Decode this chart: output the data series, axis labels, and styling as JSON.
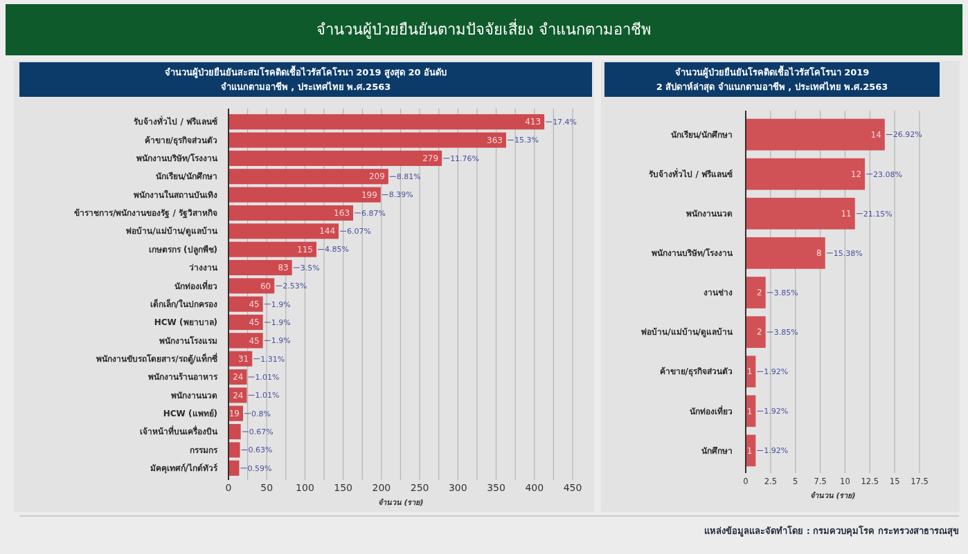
{
  "chart_data": [
    {
      "type": "bar",
      "orientation": "horizontal",
      "title": "จำนวนผู้ป่วยยืนยันสะสมโรคติดเชื้อไวรัสโคโรนา 2019 สูงสุด 20 อันดับ",
      "subtitle": "จำแนกตามอาชีพ , ประเทศไทย พ.ศ.2563",
      "xlabel": "จำนวน (ราย)",
      "categories": [
        "รับจ้างทั่วไป / ฟรีแลนซ์",
        "ค้าขาย/ธุรกิจส่วนตัว",
        "พนักงานบริษัท/โรงงาน",
        "นักเรียน/นักศึกษา",
        "พนักงานในสถานบันเทิง",
        "ข้าราชการ/พนักงานของรัฐ / รัฐวิสาหกิจ",
        "พ่อบ้าน/แม่บ้าน/ดูแลบ้าน",
        "เกษตรกร (ปลูกพืช)",
        "ว่างงาน",
        "นักท่องเที่ยว",
        "เด็กเล็ก/ในปกครอง",
        "HCW (พยาบาล)",
        "พนักงานโรงแรม",
        "พนักงานขับรถโดยสาร/รถตู้/แท็กซี่",
        "พนักงานร้านอาหาร",
        "พนักงานนวด",
        "HCW (แพทย์)",
        "เจ้าหน้าที่บนเครื่องบิน",
        "กรรมกร",
        "มัคคุเทศก์/ไกด์ทัวร์"
      ],
      "values": [
        413,
        363,
        279,
        209,
        199,
        163,
        144,
        115,
        83,
        60,
        45,
        45,
        45,
        31,
        24,
        24,
        19,
        16,
        15,
        14
      ],
      "value_labels": [
        "413",
        "363",
        "279",
        "209",
        "199",
        "163",
        "144",
        "115",
        "83",
        "60",
        "45",
        "45",
        "45",
        "31",
        "24",
        "24",
        "19",
        null,
        null,
        null
      ],
      "color": "#cd4a4f",
      "xlim": [
        0,
        450
      ],
      "xticks": [
        0,
        {
          "value": 25,
          "label": null
        },
        50,
        {
          "value": 75,
          "label": null
        },
        100,
        {
          "value": 125,
          "label": null
        },
        150,
        {
          "value": 175,
          "label": null
        },
        200,
        {
          "value": 225,
          "label": null
        },
        250,
        {
          "value": 275,
          "label": null
        },
        300,
        {
          "value": 325,
          "label": null
        },
        350,
        {
          "value": 375,
          "label": null
        },
        400,
        {
          "value": 425,
          "label": null
        },
        450
      ],
      "grid": "x",
      "annotations": [
        "จำนวนผู้ป่วยยืนยันตามปัจจัยเสี่ยง จำแนกตามอาชีพ",
        {
          "text": "17.4%",
          "x": 413,
          "y": "รับจ้างทั่วไป / ฟรีแลนซ์"
        },
        {
          "text": "15.3%",
          "x": 363,
          "y": "ค้าขาย/ธุรกิจส่วนตัว"
        },
        {
          "text": "11.76%",
          "x": 279,
          "y": "พนักงานบริษัท/โรงงาน"
        },
        {
          "text": "8.81%",
          "x": 209,
          "y": "นักเรียน/นักศึกษา"
        },
        {
          "text": "8.39%",
          "x": 199,
          "y": "พนักงานในสถานบันเทิง"
        },
        {
          "text": "6.87%",
          "x": 163,
          "y": "ข้าราชการ/พนักงานของรัฐ / รัฐวิสาหกิจ"
        },
        {
          "text": "6.07%",
          "x": 144,
          "y": "พ่อบ้าน/แม่บ้าน/ดูแลบ้าน"
        },
        {
          "text": "4.85%",
          "x": 115,
          "y": "เกษตรกร (ปลูกพืช)"
        },
        {
          "text": "3.5%",
          "x": 83,
          "y": "ว่างงาน"
        },
        {
          "text": "2.53%",
          "x": 60,
          "y": "นักท่องเที่ยว"
        },
        {
          "text": "1.9%",
          "x": 45,
          "y": "เด็กเล็ก/ในปกครอง"
        },
        {
          "text": "1.9%",
          "x": 45,
          "y": "HCW (พยาบาล)"
        },
        {
          "text": "1.9%",
          "x": 45,
          "y": "พนักงานโรงแรม"
        },
        {
          "text": "1.31%",
          "x": 31,
          "y": "พนักงานขับรถโดยสาร/รถตู้/แท็กซี่"
        },
        {
          "text": "1.01%",
          "x": 24,
          "y": "พนักงานร้านอาหาร"
        },
        {
          "text": "1.01%",
          "x": 24,
          "y": "พนักงานนวด"
        },
        {
          "text": "0.8%",
          "x": 19,
          "y": "HCW (แพทย์)"
        },
        {
          "text": "0.67%",
          "x": 16,
          "y": "เจ้าหน้าที่บนเครื่องบิน"
        },
        {
          "text": "0.63%",
          "x": 15,
          "y": "กรรมกร"
        },
        {
          "text": "0.59%",
          "x": 14,
          "y": "มัคคุเทศก์/ไกด์ทัวร์"
        }
      ]
    },
    {
      "type": "bar",
      "orientation": "horizontal",
      "title": "จำนวนผู้ป่วยยืนยันโรคติดเชื้อไวรัสโคโรนา 2019",
      "subtitle": "2 สัปดาห์ล่าสุด จำแนกตามอาชีพ , ประเทศไทย พ.ศ.2563",
      "xlabel": "จำนวน (ราย)",
      "categories": [
        "นักเรียน/นักศึกษา",
        "รับจ้างทั่วไป / ฟรีแลนซ์",
        "พนักงานนวด",
        "พนักงานบริษัท/โรงงาน",
        "งานช่าง",
        "พ่อบ้าน/แม่บ้าน/ดูแลบ้าน",
        "ค้าขาย/ธุรกิจส่วนตัว",
        "นักท่องเที่ยว",
        "นักศึกษา"
      ],
      "values": [
        14,
        12,
        11,
        8,
        2,
        2,
        1,
        1,
        1
      ],
      "value_labels": [
        "14",
        "12",
        "11",
        "8",
        "2",
        "2",
        "1",
        "1",
        "1"
      ],
      "color": "#d05256",
      "xlim": [
        0,
        17.5
      ],
      "xticks": [
        0,
        2.5,
        5,
        7.5,
        10,
        12.5,
        15,
        17.5
      ],
      "grid": "x",
      "annotations": [
        {
          "text": "26.92%",
          "x": 14,
          "y": "นักเรียน/นักศึกษา"
        },
        {
          "text": "23.08%",
          "x": 12,
          "y": "รับจ้างทั่วไป / ฟรีแลนซ์"
        },
        {
          "text": "21.15%",
          "x": 11,
          "y": "พนักงานนวด"
        },
        {
          "text": "15.38%",
          "x": 8,
          "y": "พนักงานบริษัท/โรงงาน"
        },
        {
          "text": "3.85%",
          "x": 2,
          "y": "งานช่าง"
        },
        {
          "text": "3.85%",
          "x": 2,
          "y": "พ่อบ้าน/แม่บ้าน/ดูแลบ้าน"
        },
        {
          "text": "1.92%",
          "x": 1,
          "y": "ค้าขาย/ธุรกิจส่วนตัว"
        },
        {
          "text": "1.92%",
          "x": 1,
          "y": "นักท่องเที่ยว"
        },
        {
          "text": "1.92%",
          "x": 1,
          "y": "นักศึกษา"
        },
        "แหล่งข้อมูลและจัดทำโดย : กรมควบคุมโรค กระทรวงสาธารณสุข"
      ]
    }
  ]
}
